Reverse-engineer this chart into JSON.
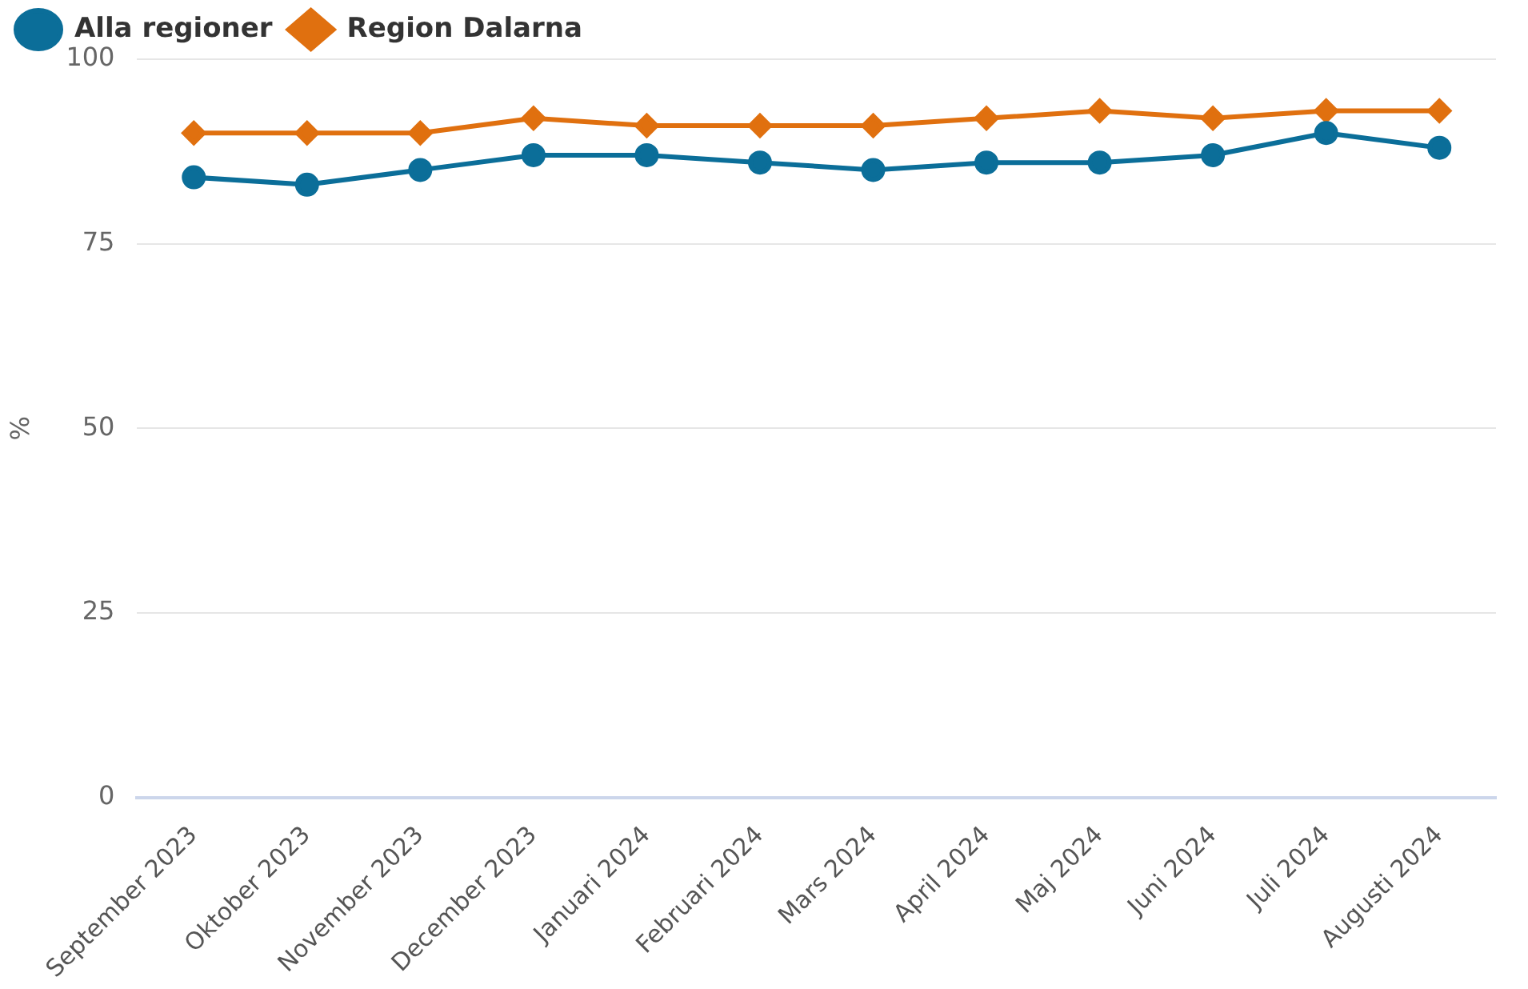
{
  "chart_data": {
    "type": "line",
    "ylabel": "%",
    "categories": [
      "September 2023",
      "Oktober 2023",
      "November 2023",
      "December 2023",
      "Januari 2024",
      "Februari 2024",
      "Mars 2024",
      "April 2024",
      "Maj 2024",
      "Juni 2024",
      "Juli 2024",
      "Augusti 2024"
    ],
    "series": [
      {
        "name": "Alla regioner",
        "color": "#0b6e99",
        "marker": "circle",
        "values": [
          84,
          83,
          85,
          87,
          87,
          86,
          85,
          86,
          86,
          87,
          90,
          88
        ]
      },
      {
        "name": "Region Dalarna",
        "color": "#e0700f",
        "marker": "diamond",
        "values": [
          90,
          90,
          90,
          92,
          91,
          91,
          91,
          92,
          93,
          92,
          93,
          93
        ]
      }
    ],
    "ylim": [
      0,
      100
    ],
    "yticks": [
      0,
      25,
      50,
      75,
      100
    ],
    "grid": "y",
    "legend": "top left",
    "line_style": "solid"
  }
}
